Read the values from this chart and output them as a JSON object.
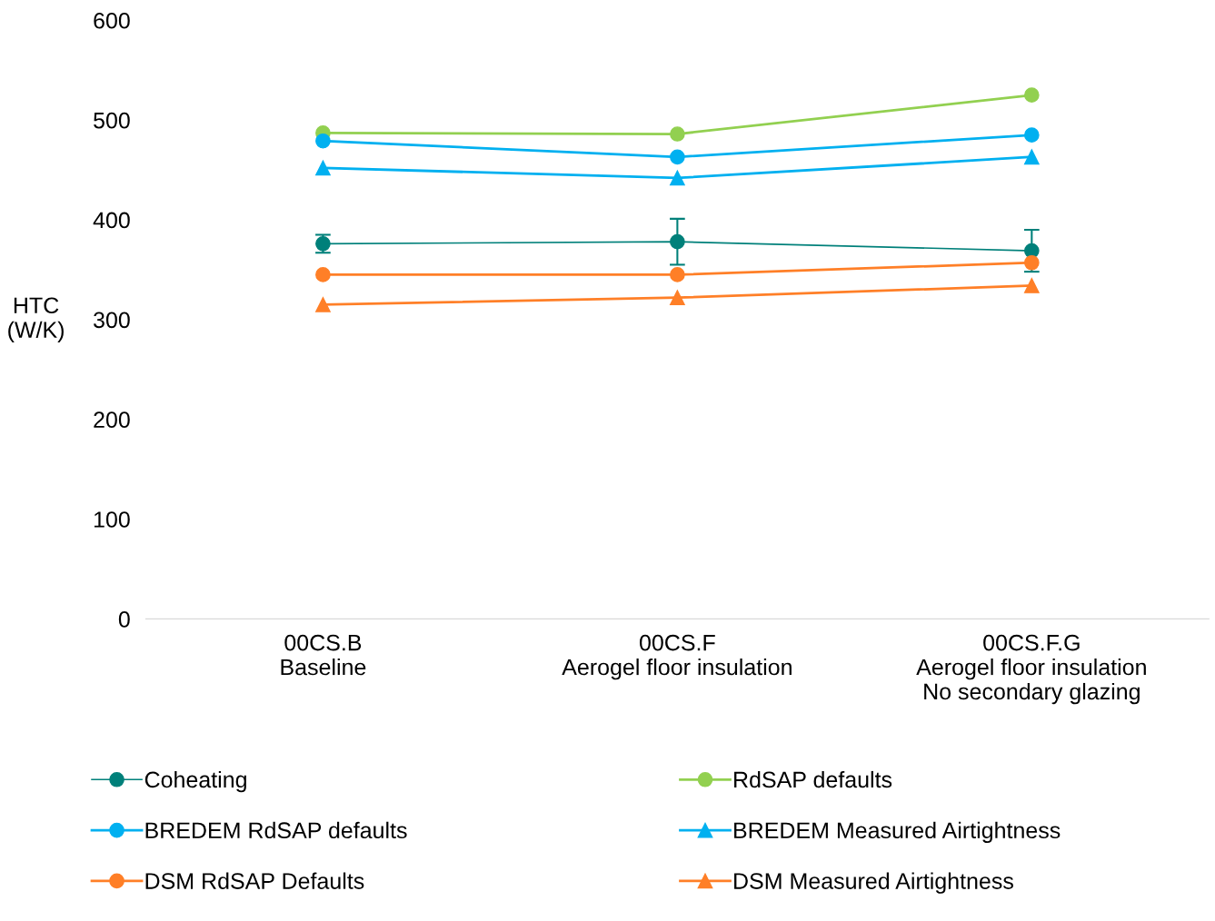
{
  "chart_data": {
    "type": "line",
    "ylabel": "HTC\n(W/K)",
    "categories": [
      "00CS.B\nBaseline",
      "00CS.F\nAerogel floor insulation",
      "00CS.F.G\nAerogel floor insulation\nNo secondary glazing"
    ],
    "ylim": [
      0,
      600
    ],
    "yticks": [
      0,
      100,
      200,
      300,
      400,
      500,
      600
    ],
    "grid": false,
    "legend": "bottom",
    "line_style": "solid",
    "series": [
      {
        "name": "Coheating",
        "color": "#00807a",
        "marker": "circle",
        "values": [
          376,
          378,
          369
        ],
        "errors": [
          [
            367,
            385
          ],
          [
            355,
            401
          ],
          [
            348,
            390
          ]
        ]
      },
      {
        "name": "RdSAP defaults",
        "color": "#92d050",
        "marker": "circle",
        "values": [
          487,
          486,
          525
        ]
      },
      {
        "name": "BREDEM RdSAP defaults",
        "color": "#00b0f0",
        "marker": "circle",
        "values": [
          479,
          463,
          485
        ]
      },
      {
        "name": "BREDEM Measured Airtightness",
        "color": "#00b0f0",
        "marker": "triangle",
        "values": [
          452,
          442,
          463
        ]
      },
      {
        "name": "DSM RdSAP Defaults",
        "color": "#ff7f27",
        "marker": "circle",
        "values": [
          345,
          345,
          357
        ]
      },
      {
        "name": "DSM Measured Airtightness",
        "color": "#ff7f27",
        "marker": "triangle",
        "values": [
          315,
          322,
          334
        ]
      }
    ]
  }
}
